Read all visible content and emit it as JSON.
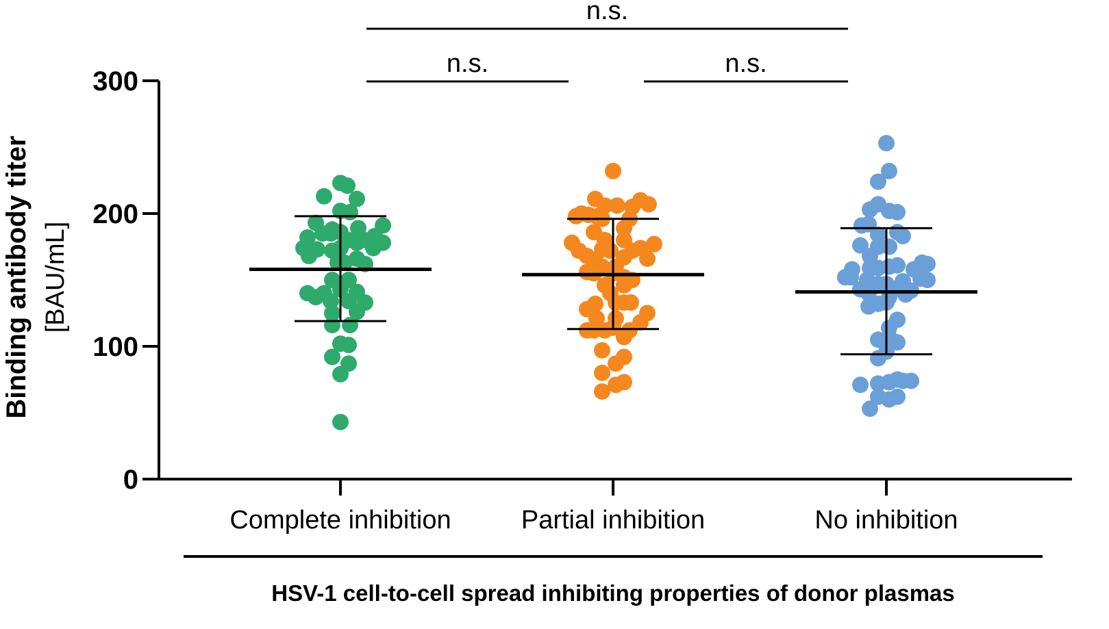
{
  "chart_data": {
    "type": "scatter",
    "subtype": "dot-plot",
    "ylabel": "Binding antibody titer",
    "ylabel_units": "[BAU/mL]",
    "xlabel": "HSV-1 cell-to-cell spread inhibiting properties of donor plasmas",
    "ylim": [
      0,
      300
    ],
    "yticks": [
      0,
      100,
      200,
      300
    ],
    "ytick_labels": [
      "0",
      "100",
      "200",
      "300"
    ],
    "categories": [
      "Complete inhibition",
      "Partial inhibition",
      "No inhibition"
    ],
    "series": [
      {
        "name": "Complete inhibition",
        "color": "#2eaa6c",
        "mean": 158,
        "sd_upper": 198,
        "sd_lower": 119,
        "points": [
          {
            "x": 0.05,
            "y": 221
          },
          {
            "x": -0.27,
            "y": 174
          },
          {
            "x": -0.07,
            "y": 185
          },
          {
            "x": 0.0,
            "y": 43
          },
          {
            "x": -0.12,
            "y": 213
          },
          {
            "x": 0.12,
            "y": 211
          },
          {
            "x": 0.0,
            "y": 223
          },
          {
            "x": -0.18,
            "y": 193
          },
          {
            "x": 0.0,
            "y": 202
          },
          {
            "x": 0.07,
            "y": 201
          },
          {
            "x": -0.24,
            "y": 182
          },
          {
            "x": -0.13,
            "y": 185
          },
          {
            "x": 0.0,
            "y": 186
          },
          {
            "x": 0.13,
            "y": 189
          },
          {
            "x": -0.06,
            "y": 188
          },
          {
            "x": -0.17,
            "y": 173
          },
          {
            "x": -0.06,
            "y": 172
          },
          {
            "x": 0.06,
            "y": 180
          },
          {
            "x": 0.18,
            "y": 180
          },
          {
            "x": 0.25,
            "y": 183
          },
          {
            "x": 0.0,
            "y": 174
          },
          {
            "x": 0.12,
            "y": 178
          },
          {
            "x": -0.23,
            "y": 168
          },
          {
            "x": 0.03,
            "y": 163
          },
          {
            "x": -0.02,
            "y": 163
          },
          {
            "x": 0.12,
            "y": 166
          },
          {
            "x": 0.18,
            "y": 162
          },
          {
            "x": 0.24,
            "y": 174
          },
          {
            "x": -0.06,
            "y": 150
          },
          {
            "x": 0.06,
            "y": 150
          },
          {
            "x": -0.18,
            "y": 137
          },
          {
            "x": -0.12,
            "y": 140
          },
          {
            "x": 0.0,
            "y": 143
          },
          {
            "x": 0.12,
            "y": 141
          },
          {
            "x": -0.07,
            "y": 134
          },
          {
            "x": 0.06,
            "y": 134
          },
          {
            "x": 0.18,
            "y": 133
          },
          {
            "x": 0.12,
            "y": 126
          },
          {
            "x": -0.06,
            "y": 125
          },
          {
            "x": -0.06,
            "y": 116
          },
          {
            "x": 0.07,
            "y": 116
          },
          {
            "x": 0.0,
            "y": 102
          },
          {
            "x": 0.06,
            "y": 101
          },
          {
            "x": -0.06,
            "y": 92
          },
          {
            "x": 0.06,
            "y": 87
          },
          {
            "x": 0.0,
            "y": 79
          },
          {
            "x": -0.24,
            "y": 140
          },
          {
            "x": 0.31,
            "y": 191
          },
          {
            "x": 0.31,
            "y": 178
          }
        ]
      },
      {
        "name": "Partial inhibition",
        "color": "#f5871f",
        "mean": 154,
        "sd_upper": 196,
        "sd_lower": 113,
        "points": [
          {
            "x": 0.0,
            "y": 232
          },
          {
            "x": -0.13,
            "y": 211
          },
          {
            "x": -0.06,
            "y": 206
          },
          {
            "x": 0.03,
            "y": 206
          },
          {
            "x": 0.14,
            "y": 205
          },
          {
            "x": 0.2,
            "y": 210
          },
          {
            "x": 0.26,
            "y": 207
          },
          {
            "x": -0.18,
            "y": 199
          },
          {
            "x": -0.12,
            "y": 198
          },
          {
            "x": -0.08,
            "y": 196
          },
          {
            "x": 0.12,
            "y": 196
          },
          {
            "x": -0.27,
            "y": 198
          },
          {
            "x": -0.23,
            "y": 200
          },
          {
            "x": -0.14,
            "y": 186
          },
          {
            "x": 0.08,
            "y": 189
          },
          {
            "x": -0.06,
            "y": 180
          },
          {
            "x": 0.08,
            "y": 180
          },
          {
            "x": -0.3,
            "y": 178
          },
          {
            "x": -0.25,
            "y": 172
          },
          {
            "x": 0.14,
            "y": 172
          },
          {
            "x": -0.08,
            "y": 173
          },
          {
            "x": -0.02,
            "y": 172
          },
          {
            "x": 0.08,
            "y": 167
          },
          {
            "x": 0.2,
            "y": 174
          },
          {
            "x": -0.19,
            "y": 168
          },
          {
            "x": 0.25,
            "y": 166
          },
          {
            "x": 0.3,
            "y": 177
          },
          {
            "x": -0.13,
            "y": 165
          },
          {
            "x": -0.19,
            "y": 156
          },
          {
            "x": -0.08,
            "y": 160
          },
          {
            "x": 0.02,
            "y": 160
          },
          {
            "x": -0.14,
            "y": 155
          },
          {
            "x": 0.0,
            "y": 155
          },
          {
            "x": 0.08,
            "y": 152
          },
          {
            "x": -0.06,
            "y": 146
          },
          {
            "x": 0.08,
            "y": 146
          },
          {
            "x": -0.02,
            "y": 140
          },
          {
            "x": 0.14,
            "y": 150
          },
          {
            "x": 0.13,
            "y": 133
          },
          {
            "x": -0.13,
            "y": 132
          },
          {
            "x": 0.02,
            "y": 133
          },
          {
            "x": 0.08,
            "y": 133
          },
          {
            "x": -0.19,
            "y": 128
          },
          {
            "x": -0.12,
            "y": 121
          },
          {
            "x": 0.02,
            "y": 121
          },
          {
            "x": 0.2,
            "y": 118
          },
          {
            "x": -0.14,
            "y": 112
          },
          {
            "x": -0.06,
            "y": 112
          },
          {
            "x": 0.0,
            "y": 114
          },
          {
            "x": 0.12,
            "y": 112
          },
          {
            "x": -0.19,
            "y": 112
          },
          {
            "x": 0.08,
            "y": 107
          },
          {
            "x": -0.08,
            "y": 97
          },
          {
            "x": 0.08,
            "y": 92
          },
          {
            "x": 0.02,
            "y": 87
          },
          {
            "x": -0.08,
            "y": 80
          },
          {
            "x": 0.08,
            "y": 73
          },
          {
            "x": 0.02,
            "y": 71
          },
          {
            "x": -0.08,
            "y": 66
          },
          {
            "x": 0.25,
            "y": 125
          }
        ]
      },
      {
        "name": "No inhibition",
        "color": "#6a9fd8",
        "mean": 141,
        "sd_upper": 189,
        "sd_lower": 94,
        "points": [
          {
            "x": 0.0,
            "y": 253
          },
          {
            "x": 0.02,
            "y": 232
          },
          {
            "x": -0.06,
            "y": 224
          },
          {
            "x": -0.06,
            "y": 207
          },
          {
            "x": -0.12,
            "y": 203
          },
          {
            "x": 0.02,
            "y": 202
          },
          {
            "x": 0.08,
            "y": 201
          },
          {
            "x": -0.13,
            "y": 192
          },
          {
            "x": -0.18,
            "y": 191
          },
          {
            "x": 0.08,
            "y": 186
          },
          {
            "x": 0.12,
            "y": 183
          },
          {
            "x": -0.06,
            "y": 184
          },
          {
            "x": -0.19,
            "y": 176
          },
          {
            "x": -0.06,
            "y": 175
          },
          {
            "x": 0.02,
            "y": 175
          },
          {
            "x": -0.12,
            "y": 168
          },
          {
            "x": -0.06,
            "y": 159
          },
          {
            "x": 0.02,
            "y": 160
          },
          {
            "x": 0.08,
            "y": 161
          },
          {
            "x": 0.2,
            "y": 158
          },
          {
            "x": 0.26,
            "y": 163
          },
          {
            "x": 0.3,
            "y": 162
          },
          {
            "x": -0.12,
            "y": 159
          },
          {
            "x": -0.25,
            "y": 158
          },
          {
            "x": -0.26,
            "y": 152
          },
          {
            "x": -0.14,
            "y": 150
          },
          {
            "x": -0.06,
            "y": 147
          },
          {
            "x": 0.0,
            "y": 147
          },
          {
            "x": 0.12,
            "y": 149
          },
          {
            "x": 0.3,
            "y": 150
          },
          {
            "x": 0.25,
            "y": 151
          },
          {
            "x": -0.28,
            "y": 153
          },
          {
            "x": -0.3,
            "y": 152
          },
          {
            "x": 0.08,
            "y": 144
          },
          {
            "x": -0.19,
            "y": 143
          },
          {
            "x": 0.18,
            "y": 142
          },
          {
            "x": -0.13,
            "y": 140
          },
          {
            "x": 0.14,
            "y": 139
          },
          {
            "x": 0.02,
            "y": 137
          },
          {
            "x": -0.06,
            "y": 132
          },
          {
            "x": 0.0,
            "y": 133
          },
          {
            "x": -0.13,
            "y": 130
          },
          {
            "x": 0.08,
            "y": 120
          },
          {
            "x": 0.02,
            "y": 114
          },
          {
            "x": 0.02,
            "y": 107
          },
          {
            "x": -0.06,
            "y": 105
          },
          {
            "x": 0.08,
            "y": 103
          },
          {
            "x": -0.06,
            "y": 91
          },
          {
            "x": 0.0,
            "y": 96
          },
          {
            "x": -0.19,
            "y": 71
          },
          {
            "x": -0.06,
            "y": 72
          },
          {
            "x": 0.02,
            "y": 73
          },
          {
            "x": 0.08,
            "y": 75
          },
          {
            "x": 0.12,
            "y": 74
          },
          {
            "x": 0.18,
            "y": 74
          },
          {
            "x": -0.06,
            "y": 62
          },
          {
            "x": 0.02,
            "y": 60
          },
          {
            "x": 0.08,
            "y": 62
          },
          {
            "x": -0.12,
            "y": 53
          }
        ]
      }
    ],
    "comparisons": [
      {
        "from": 0,
        "to": 2,
        "label": "n.s.",
        "level": 2
      },
      {
        "from": 0,
        "to": 1,
        "label": "n.s.",
        "level": 1
      },
      {
        "from": 1,
        "to": 2,
        "label": "n.s.",
        "level": 1
      }
    ]
  }
}
